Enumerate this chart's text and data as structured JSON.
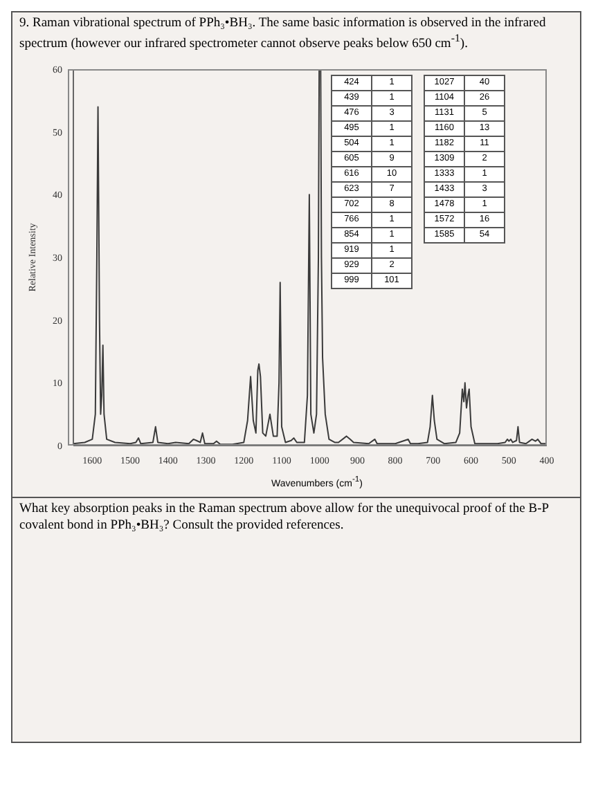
{
  "chart_data": {
    "type": "line",
    "title": "9. Raman vibrational spectrum of PPh₃•BH₃. The same basic information is observed in the infrared spectrum (however our infrared spectrometer cannot observe peaks below 650 cm$^{-1}$).",
    "xlabel": "Wavenumbers (cm$^{-1}$)",
    "ylabel": "Relative Intensity",
    "xlim": [
      1650,
      400
    ],
    "xticks": [
      1600,
      1500,
      1400,
      1300,
      1200,
      1100,
      1000,
      900,
      800,
      700,
      600,
      500,
      400
    ],
    "ylim": [
      0,
      60
    ],
    "yticks": [
      0,
      10,
      20,
      30,
      40,
      50,
      60
    ],
    "grid": false,
    "legend": false,
    "marker": "none",
    "line_style": "solid",
    "series": [
      {
        "color": "#3a3a3a",
        "x": [
          1650,
          1620,
          1600,
          1592,
          1588,
          1585,
          1581,
          1578,
          1575,
          1572,
          1569,
          1562,
          1540,
          1500,
          1485,
          1478,
          1472,
          1440,
          1433,
          1427,
          1400,
          1380,
          1345,
          1333,
          1325,
          1315,
          1309,
          1303,
          1280,
          1272,
          1262,
          1230,
          1200,
          1190,
          1182,
          1175,
          1168,
          1163,
          1160,
          1156,
          1150,
          1142,
          1131,
          1122,
          1112,
          1107,
          1104,
          1100,
          1090,
          1075,
          1068,
          1060,
          1040,
          1032,
          1027,
          1023,
          1015,
          1008,
          1003,
          1001,
          997,
          995,
          992,
          985,
          975,
          960,
          950,
          935,
          929,
          919,
          910,
          870,
          854,
          848,
          800,
          766,
          760,
          740,
          715,
          708,
          702,
          697,
          690,
          670,
          640,
          630,
          625,
          623,
          619,
          616,
          612,
          608,
          605,
          600,
          590,
          530,
          510,
          504,
          500,
          495,
          490,
          480,
          476,
          472,
          455,
          439,
          430,
          424,
          415,
          400
        ],
        "values": [
          0.3,
          0.5,
          1,
          5,
          30,
          54,
          20,
          5,
          8,
          16,
          5,
          1,
          0.5,
          0.3,
          0.5,
          1.2,
          0.3,
          0.5,
          3,
          0.5,
          0.3,
          0.5,
          0.3,
          1,
          0.8,
          0.5,
          2,
          0.3,
          0.3,
          0.7,
          0.2,
          0.2,
          0.5,
          4,
          11,
          4,
          2,
          12,
          13,
          11,
          2,
          1.5,
          5,
          1.5,
          1.5,
          10,
          26,
          3,
          0.5,
          0.8,
          1.2,
          0.5,
          0.5,
          8,
          40,
          5,
          2,
          5,
          30,
          60,
          60,
          30,
          14,
          5,
          1,
          0.5,
          0.5,
          1.2,
          1.5,
          1,
          0.5,
          0.3,
          1,
          0.3,
          0.3,
          1,
          0.3,
          0.3,
          0.5,
          3,
          8,
          4,
          1,
          0.3,
          0.5,
          2,
          7,
          9,
          7,
          10,
          6,
          8,
          9,
          3,
          0.3,
          0.3,
          0.5,
          1,
          0.7,
          1,
          0.5,
          0.8,
          3,
          0.5,
          0.3,
          1,
          0.7,
          1,
          0.3,
          0.3
        ]
      }
    ],
    "annotations": [
      "What key absorption peaks in the Raman spectrum above allow for the unequivocal proof of the B-P covalent bond in PPh₃•BH₃? Consult the provided references.",
      "424",
      "1",
      "439",
      "1",
      "476",
      "3",
      "495",
      "1",
      "504",
      "1",
      "605",
      "9",
      "616",
      "10",
      "623",
      "7",
      "702",
      "8",
      "766",
      "1",
      "854",
      "1",
      "919",
      "1",
      "929",
      "2",
      "999",
      "101",
      "1027",
      "40",
      "1104",
      "26",
      "1131",
      "5",
      "1160",
      "13",
      "1182",
      "11",
      "1309",
      "2",
      "1333",
      "1",
      "1433",
      "3",
      "1478",
      "1",
      "1572",
      "16",
      "1585",
      "54"
    ]
  }
}
